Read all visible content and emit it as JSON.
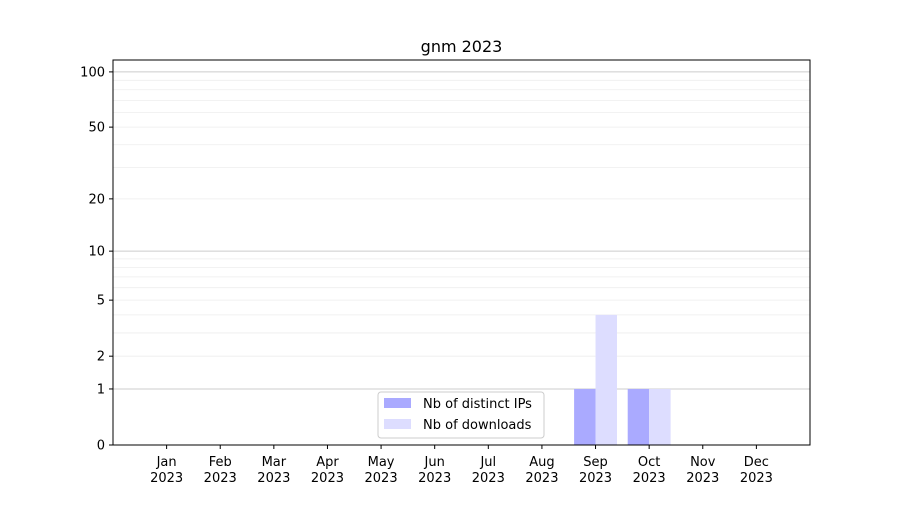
{
  "chart_data": {
    "type": "bar",
    "title": "gnm 2023",
    "xlabel": "",
    "ylabel": "",
    "categories": [
      "Jan\n2023",
      "Feb\n2023",
      "Mar\n2023",
      "Apr\n2023",
      "May\n2023",
      "Jun\n2023",
      "Jul\n2023",
      "Aug\n2023",
      "Sep\n2023",
      "Oct\n2023",
      "Nov\n2023",
      "Dec\n2023"
    ],
    "series": [
      {
        "name": "Nb of distinct IPs",
        "color": "#aaaaff",
        "values": [
          0,
          0,
          0,
          0,
          0,
          0,
          0,
          0,
          1,
          1,
          0,
          0
        ]
      },
      {
        "name": "Nb of downloads",
        "color": "#ddddff",
        "values": [
          0,
          0,
          0,
          0,
          0,
          0,
          0,
          0,
          4,
          1,
          0,
          0
        ]
      }
    ],
    "yscale": "log(1+y)",
    "yticks": [
      0,
      1,
      2,
      5,
      10,
      20,
      50,
      100
    ],
    "ylim": [
      0,
      116
    ],
    "grid": true,
    "legend": "bottom-center"
  }
}
